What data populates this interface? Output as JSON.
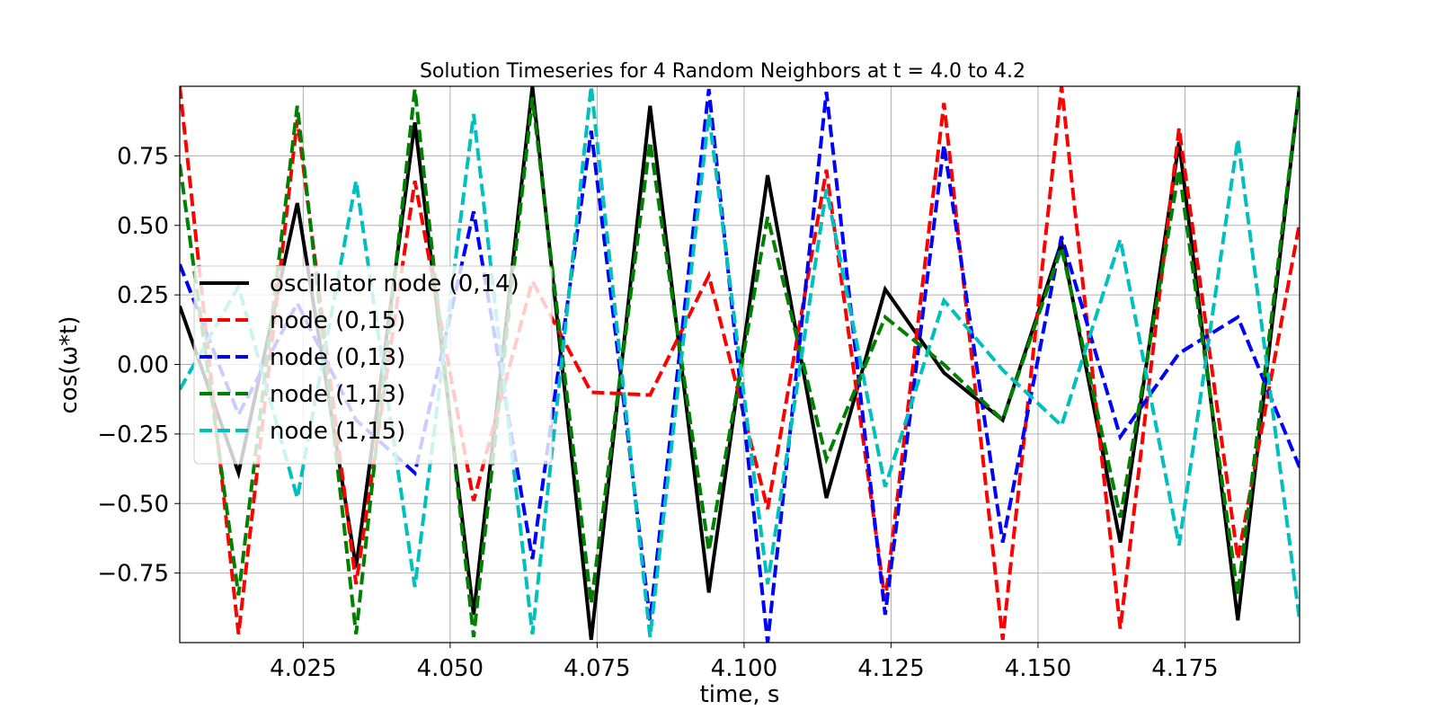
{
  "chart_data": {
    "type": "line",
    "title": "Solution Timeseries for 4 Random Neighbors at t = 4.0 to 4.2",
    "xlabel": "time, s",
    "ylabel": "cos(ω*t)",
    "xlim": [
      4.004,
      4.1945
    ],
    "ylim": [
      -1.0,
      1.0
    ],
    "xticks": [
      4.025,
      4.05,
      4.075,
      4.1,
      4.125,
      4.15,
      4.175
    ],
    "xtick_labels": [
      "4.025",
      "4.050",
      "4.075",
      "4.100",
      "4.125",
      "4.150",
      "4.175"
    ],
    "yticks": [
      -0.75,
      -0.5,
      -0.25,
      0.0,
      0.25,
      0.5,
      0.75
    ],
    "ytick_labels": [
      "−0.75",
      "−0.50",
      "−0.25",
      "0.00",
      "0.25",
      "0.50",
      "0.75"
    ],
    "grid": true,
    "legend_position": "center-left",
    "x": [
      4.004,
      4.014,
      4.024,
      4.034,
      4.044,
      4.054,
      4.064,
      4.074,
      4.084,
      4.094,
      4.104,
      4.114,
      4.124,
      4.134,
      4.144,
      4.154,
      4.164,
      4.174,
      4.184,
      4.1945
    ],
    "series": [
      {
        "name": "oscillator node (0,14)",
        "color": "#000000",
        "style": "solid",
        "values": [
          0.21,
          -0.39,
          0.58,
          -0.73,
          0.87,
          -0.9,
          1.0,
          -0.99,
          0.93,
          -0.82,
          0.68,
          -0.48,
          0.27,
          -0.03,
          -0.2,
          0.44,
          -0.64,
          0.8,
          -0.92,
          1.0
        ]
      },
      {
        "name": "node (0,15)",
        "color": "#ff0000",
        "style": "dashed",
        "values": [
          1.0,
          -0.97,
          0.88,
          -0.79,
          0.66,
          -0.49,
          0.3,
          -0.1,
          -0.11,
          0.32,
          -0.52,
          0.7,
          -0.85,
          0.94,
          -0.99,
          1.0,
          -0.95,
          0.85,
          -0.7,
          0.51
        ]
      },
      {
        "name": "node (0,13)",
        "color": "#0000ff",
        "style": "dashed",
        "values": [
          0.36,
          -0.18,
          0.22,
          -0.2,
          -0.39,
          0.55,
          -0.7,
          0.84,
          -0.92,
          0.99,
          -1.0,
          0.98,
          -0.9,
          0.79,
          -0.64,
          0.46,
          -0.26,
          0.04,
          0.17,
          -0.37
        ]
      },
      {
        "name": "node (1,13)",
        "color": "#008000",
        "style": "dashed",
        "values": [
          0.72,
          -0.83,
          0.93,
          -0.97,
          0.99,
          -0.98,
          0.96,
          -0.86,
          0.8,
          -0.67,
          0.53,
          -0.34,
          0.17,
          0.0,
          -0.2,
          0.42,
          -0.55,
          0.7,
          -0.83,
          1.0
        ]
      },
      {
        "name": "node (1,15)",
        "color": "#00bfbf",
        "style": "dashed",
        "values": [
          -0.09,
          0.28,
          -0.48,
          0.66,
          -0.8,
          0.9,
          -0.97,
          1.0,
          -0.98,
          0.9,
          -0.79,
          0.63,
          -0.44,
          0.23,
          -0.02,
          -0.22,
          0.45,
          -0.65,
          0.81,
          -0.92
        ]
      }
    ]
  }
}
